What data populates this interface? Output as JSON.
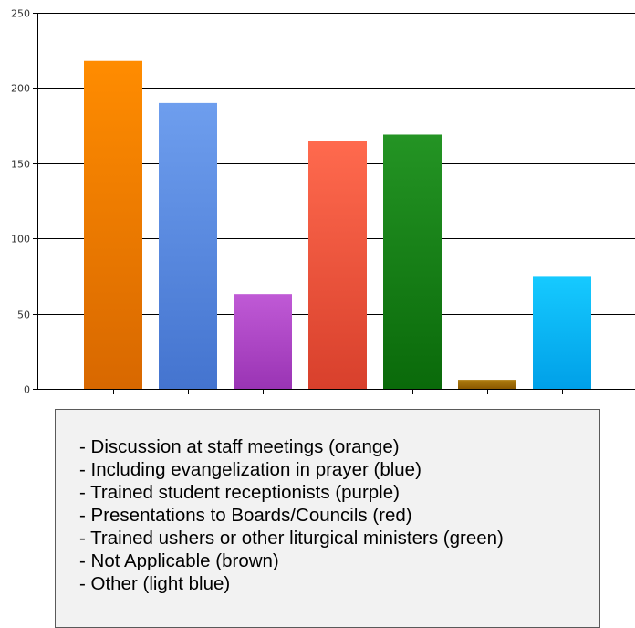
{
  "chart_data": {
    "type": "bar",
    "categories": [
      "Discussion at staff meetings",
      "Including evangelization in prayer",
      "Trained student receptionists",
      "Presentations to Boards/Councils",
      "Trained ushers or other liturgical ministers",
      "Not Applicable",
      "Other"
    ],
    "values": [
      218,
      190,
      63,
      165,
      169,
      6,
      75
    ],
    "colors": [
      [
        "#ff8c00",
        "#d86800"
      ],
      [
        "#6e9eee",
        "#4474cf"
      ],
      [
        "#c05ad6",
        "#9a34b4"
      ],
      [
        "#ff6a4e",
        "#d8402c"
      ],
      [
        "#249424",
        "#0a6a0a"
      ],
      [
        "#b07e10",
        "#8a5800"
      ],
      [
        "#16caff",
        "#00a0e8"
      ]
    ],
    "ylim": [
      0,
      250
    ],
    "yticks": [
      0,
      50,
      100,
      150,
      200,
      250
    ],
    "grid": true,
    "xlabel": "",
    "ylabel": ""
  },
  "legend": {
    "items": [
      "- Discussion at staff meetings (orange)",
      "- Including evangelization in prayer  (blue)",
      "- Trained student receptionists (purple)",
      "- Presentations to Boards/Councils (red)",
      "- Trained ushers or other liturgical ministers (green)",
      "- Not Applicable (brown)",
      "- Other (light blue)"
    ]
  }
}
